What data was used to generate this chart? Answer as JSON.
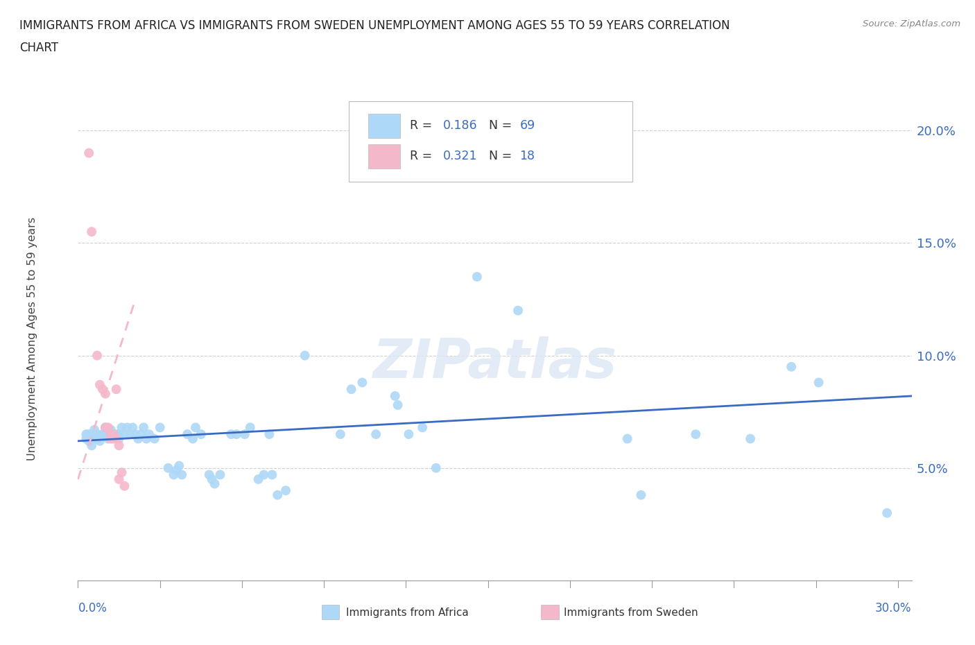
{
  "title_line1": "IMMIGRANTS FROM AFRICA VS IMMIGRANTS FROM SWEDEN UNEMPLOYMENT AMONG AGES 55 TO 59 YEARS CORRELATION",
  "title_line2": "CHART",
  "source": "Source: ZipAtlas.com",
  "ylabel": "Unemployment Among Ages 55 to 59 years",
  "yticks": [
    0.05,
    0.1,
    0.15,
    0.2
  ],
  "ytick_labels": [
    "5.0%",
    "10.0%",
    "15.0%",
    "20.0%"
  ],
  "xlim": [
    0.0,
    0.305
  ],
  "ylim": [
    0.0,
    0.215
  ],
  "watermark": "ZIPatlas",
  "africa_color": "#add8f7",
  "sweden_color": "#f4b8cb",
  "africa_line_color": "#3a6bc4",
  "sweden_line_color": "#e87090",
  "africa_scatter": [
    [
      0.003,
      0.065
    ],
    [
      0.003,
      0.063
    ],
    [
      0.004,
      0.062
    ],
    [
      0.004,
      0.065
    ],
    [
      0.005,
      0.063
    ],
    [
      0.005,
      0.06
    ],
    [
      0.005,
      0.065
    ],
    [
      0.006,
      0.067
    ],
    [
      0.007,
      0.065
    ],
    [
      0.007,
      0.063
    ],
    [
      0.008,
      0.062
    ],
    [
      0.009,
      0.065
    ],
    [
      0.01,
      0.068
    ],
    [
      0.01,
      0.065
    ],
    [
      0.011,
      0.063
    ],
    [
      0.012,
      0.067
    ],
    [
      0.013,
      0.065
    ],
    [
      0.014,
      0.065
    ],
    [
      0.015,
      0.065
    ],
    [
      0.015,
      0.063
    ],
    [
      0.016,
      0.068
    ],
    [
      0.017,
      0.065
    ],
    [
      0.018,
      0.068
    ],
    [
      0.019,
      0.065
    ],
    [
      0.02,
      0.068
    ],
    [
      0.021,
      0.065
    ],
    [
      0.022,
      0.063
    ],
    [
      0.023,
      0.065
    ],
    [
      0.024,
      0.068
    ],
    [
      0.025,
      0.063
    ],
    [
      0.026,
      0.065
    ],
    [
      0.028,
      0.063
    ],
    [
      0.03,
      0.068
    ],
    [
      0.033,
      0.05
    ],
    [
      0.035,
      0.047
    ],
    [
      0.036,
      0.049
    ],
    [
      0.037,
      0.051
    ],
    [
      0.038,
      0.047
    ],
    [
      0.04,
      0.065
    ],
    [
      0.042,
      0.063
    ],
    [
      0.043,
      0.068
    ],
    [
      0.045,
      0.065
    ],
    [
      0.048,
      0.047
    ],
    [
      0.049,
      0.045
    ],
    [
      0.05,
      0.043
    ],
    [
      0.052,
      0.047
    ],
    [
      0.056,
      0.065
    ],
    [
      0.058,
      0.065
    ],
    [
      0.061,
      0.065
    ],
    [
      0.063,
      0.068
    ],
    [
      0.066,
      0.045
    ],
    [
      0.068,
      0.047
    ],
    [
      0.07,
      0.065
    ],
    [
      0.071,
      0.047
    ],
    [
      0.073,
      0.038
    ],
    [
      0.076,
      0.04
    ],
    [
      0.083,
      0.1
    ],
    [
      0.096,
      0.065
    ],
    [
      0.1,
      0.085
    ],
    [
      0.104,
      0.088
    ],
    [
      0.109,
      0.065
    ],
    [
      0.116,
      0.082
    ],
    [
      0.117,
      0.078
    ],
    [
      0.121,
      0.065
    ],
    [
      0.126,
      0.068
    ],
    [
      0.131,
      0.05
    ],
    [
      0.146,
      0.135
    ],
    [
      0.161,
      0.12
    ],
    [
      0.201,
      0.063
    ],
    [
      0.206,
      0.038
    ],
    [
      0.226,
      0.065
    ],
    [
      0.246,
      0.063
    ],
    [
      0.261,
      0.095
    ],
    [
      0.271,
      0.088
    ],
    [
      0.296,
      0.03
    ]
  ],
  "sweden_scatter": [
    [
      0.004,
      0.19
    ],
    [
      0.005,
      0.155
    ],
    [
      0.007,
      0.1
    ],
    [
      0.008,
      0.087
    ],
    [
      0.009,
      0.085
    ],
    [
      0.01,
      0.083
    ],
    [
      0.01,
      0.068
    ],
    [
      0.011,
      0.068
    ],
    [
      0.012,
      0.065
    ],
    [
      0.012,
      0.063
    ],
    [
      0.013,
      0.065
    ],
    [
      0.013,
      0.063
    ],
    [
      0.014,
      0.085
    ],
    [
      0.014,
      0.063
    ],
    [
      0.015,
      0.06
    ],
    [
      0.015,
      0.045
    ],
    [
      0.016,
      0.048
    ],
    [
      0.017,
      0.042
    ]
  ],
  "africa_trend_x": [
    0.0,
    0.305
  ],
  "africa_trend_y": [
    0.062,
    0.082
  ],
  "sweden_trend_x": [
    0.0,
    0.021
  ],
  "sweden_trend_y": [
    0.045,
    0.125
  ]
}
